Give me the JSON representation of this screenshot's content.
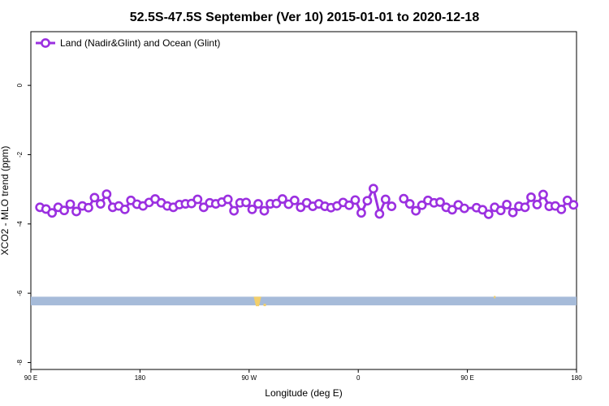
{
  "chart_data": {
    "type": "line",
    "title": "52.5S-47.5S September (Ver 10)   2015-01-01 to 2020-12-18",
    "xlabel": "Longitude (deg E)",
    "ylabel": "XCO2 - MLO trend (ppm)",
    "xlim": [
      90,
      450
    ],
    "ylim": [
      -8.2,
      1.55
    ],
    "x_ticks": [
      {
        "value": 90,
        "label": "90 E"
      },
      {
        "value": 162,
        "label": "180"
      },
      {
        "value": 234,
        "label": "90 W"
      },
      {
        "value": 306,
        "label": "0"
      },
      {
        "value": 378,
        "label": "90 E"
      },
      {
        "value": 450,
        "label": "180"
      }
    ],
    "y_ticks": [
      {
        "value": 0,
        "label": "0"
      },
      {
        "value": -2,
        "label": "-2"
      },
      {
        "value": -4,
        "label": "-4"
      },
      {
        "value": -6,
        "label": "-6"
      },
      {
        "value": -8,
        "label": "-8"
      }
    ],
    "grid": false,
    "legend_position": "top-left",
    "series": [
      {
        "name": "Land (Nadir&Glint) and Ocean (Glint)",
        "color": "#9b30e0",
        "marker": "open-circle",
        "segments": [
          [
            [
              96,
              -3.52
            ],
            [
              100,
              -3.57
            ],
            [
              104,
              -3.68
            ],
            [
              108,
              -3.52
            ],
            [
              112,
              -3.61
            ],
            [
              116,
              -3.43
            ],
            [
              120,
              -3.64
            ],
            [
              124,
              -3.48
            ],
            [
              128,
              -3.53
            ],
            [
              132,
              -3.24
            ],
            [
              136,
              -3.42
            ],
            [
              140,
              -3.14
            ],
            [
              144,
              -3.52
            ],
            [
              148,
              -3.48
            ],
            [
              152,
              -3.58
            ],
            [
              156,
              -3.32
            ],
            [
              160,
              -3.43
            ],
            [
              164,
              -3.48
            ],
            [
              168,
              -3.38
            ],
            [
              172,
              -3.28
            ],
            [
              176,
              -3.39
            ],
            [
              180,
              -3.48
            ],
            [
              184,
              -3.52
            ],
            [
              188,
              -3.44
            ],
            [
              192,
              -3.42
            ],
            [
              196,
              -3.41
            ],
            [
              200,
              -3.29
            ],
            [
              204,
              -3.52
            ],
            [
              208,
              -3.39
            ],
            [
              212,
              -3.42
            ],
            [
              216,
              -3.37
            ],
            [
              220,
              -3.29
            ],
            [
              224,
              -3.62
            ],
            [
              228,
              -3.39
            ],
            [
              232,
              -3.38
            ],
            [
              236,
              -3.58
            ],
            [
              240,
              -3.42
            ],
            [
              244,
              -3.62
            ],
            [
              248,
              -3.42
            ],
            [
              252,
              -3.41
            ],
            [
              256,
              -3.28
            ],
            [
              260,
              -3.43
            ],
            [
              264,
              -3.32
            ],
            [
              268,
              -3.52
            ],
            [
              272,
              -3.39
            ],
            [
              276,
              -3.49
            ],
            [
              280,
              -3.42
            ],
            [
              284,
              -3.49
            ],
            [
              288,
              -3.53
            ],
            [
              292,
              -3.48
            ],
            [
              296,
              -3.38
            ],
            [
              300,
              -3.46
            ],
            [
              304,
              -3.31
            ],
            [
              308,
              -3.68
            ],
            [
              312,
              -3.33
            ],
            [
              316,
              -2.98
            ],
            [
              320,
              -3.71
            ],
            [
              324,
              -3.29
            ],
            [
              328,
              -3.49
            ]
          ],
          [
            [
              336,
              -3.27
            ],
            [
              340,
              -3.42
            ],
            [
              344,
              -3.62
            ],
            [
              348,
              -3.46
            ],
            [
              352,
              -3.32
            ],
            [
              356,
              -3.39
            ],
            [
              360,
              -3.37
            ],
            [
              364,
              -3.52
            ],
            [
              368,
              -3.59
            ],
            [
              372,
              -3.45
            ],
            [
              376,
              -3.55
            ],
            [
              384,
              -3.53
            ],
            [
              388,
              -3.59
            ],
            [
              392,
              -3.72
            ],
            [
              396,
              -3.52
            ],
            [
              400,
              -3.61
            ],
            [
              404,
              -3.44
            ],
            [
              408,
              -3.67
            ],
            [
              412,
              -3.49
            ],
            [
              416,
              -3.52
            ],
            [
              420,
              -3.23
            ],
            [
              424,
              -3.44
            ],
            [
              428,
              -3.15
            ],
            [
              432,
              -3.49
            ],
            [
              436,
              -3.48
            ],
            [
              440,
              -3.58
            ],
            [
              444,
              -3.32
            ],
            [
              448,
              -3.45
            ]
          ]
        ]
      }
    ],
    "colors": {
      "series": "#9b30e0",
      "ocean_band": "#a6bbd9",
      "land_band": "#f2cf6b"
    }
  }
}
